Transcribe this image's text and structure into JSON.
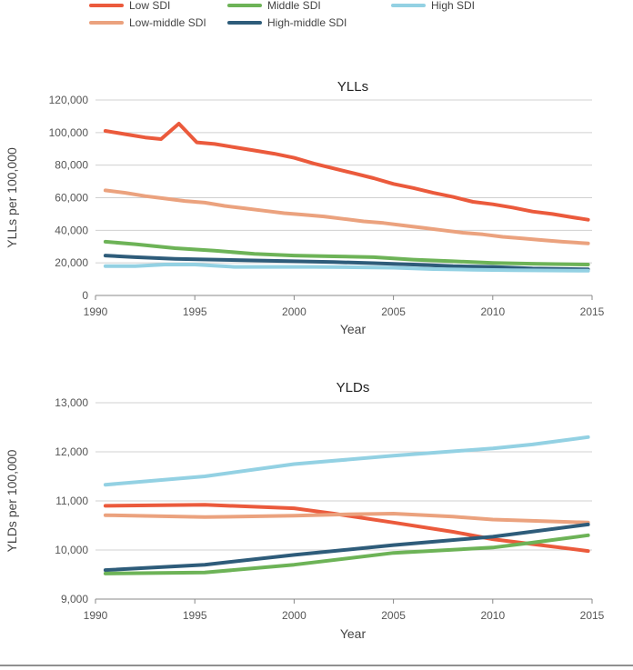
{
  "colors": {
    "low": "#eb5a3c",
    "low_middle": "#eba27e",
    "middle": "#6db357",
    "high_middle": "#2e5c7a",
    "high": "#93d1e3"
  },
  "legend": [
    {
      "key": "low",
      "label": "Low SDI"
    },
    {
      "key": "low_middle",
      "label": "Low-middle SDI"
    },
    {
      "key": "middle",
      "label": "Middle SDI"
    },
    {
      "key": "high_middle",
      "label": "High-middle SDI"
    },
    {
      "key": "high",
      "label": "High SDI"
    }
  ],
  "chart_data": [
    {
      "type": "line",
      "title": "YLLs",
      "xlabel": "Year",
      "ylabel": "YLLs per 100,000",
      "xlim": [
        1990,
        2015
      ],
      "ylim": [
        0,
        120000
      ],
      "x_ticks": [
        "1990",
        "1995",
        "2000",
        "2005",
        "2010",
        "2015"
      ],
      "y_ticks": [
        "0",
        "20,000",
        "40,000",
        "60,000",
        "80,000",
        "100,000",
        "120,000"
      ],
      "grid": true,
      "series": [
        {
          "key": "low",
          "name": "Low SDI",
          "points": [
            [
              1990.5,
              101000
            ],
            [
              1991.5,
              99000
            ],
            [
              1992.5,
              97000
            ],
            [
              1993.3,
              96000
            ],
            [
              1994.2,
              105500
            ],
            [
              1995.1,
              94000
            ],
            [
              1996,
              93000
            ],
            [
              1997,
              91000
            ],
            [
              1998,
              89000
            ],
            [
              1999,
              87000
            ],
            [
              2000,
              84500
            ],
            [
              2001,
              81000
            ],
            [
              2002,
              78000
            ],
            [
              2003,
              75000
            ],
            [
              2004,
              72000
            ],
            [
              2005,
              68500
            ],
            [
              2006,
              66000
            ],
            [
              2007,
              63000
            ],
            [
              2008,
              60500
            ],
            [
              2009,
              57500
            ],
            [
              2010,
              56000
            ],
            [
              2011,
              54000
            ],
            [
              2012,
              51500
            ],
            [
              2013,
              50000
            ],
            [
              2014,
              48000
            ],
            [
              2014.8,
              46500
            ]
          ]
        },
        {
          "key": "low_middle",
          "name": "Low-middle SDI",
          "points": [
            [
              1990.5,
              64500
            ],
            [
              1991.5,
              63000
            ],
            [
              1992.5,
              61000
            ],
            [
              1993.5,
              59500
            ],
            [
              1994.5,
              58000
            ],
            [
              1995.5,
              57000
            ],
            [
              1996.5,
              55000
            ],
            [
              1997.5,
              53500
            ],
            [
              1998.5,
              52000
            ],
            [
              1999.5,
              50500
            ],
            [
              2000.5,
              49500
            ],
            [
              2001.5,
              48500
            ],
            [
              2002.5,
              47000
            ],
            [
              2003.5,
              45500
            ],
            [
              2004.5,
              44500
            ],
            [
              2005.5,
              43000
            ],
            [
              2006.5,
              41500
            ],
            [
              2007.5,
              40000
            ],
            [
              2008.5,
              38500
            ],
            [
              2009.5,
              37500
            ],
            [
              2010.5,
              36000
            ],
            [
              2011.5,
              35000
            ],
            [
              2012.5,
              34000
            ],
            [
              2013.5,
              33000
            ],
            [
              2014.8,
              32000
            ]
          ]
        },
        {
          "key": "middle",
          "name": "Middle SDI",
          "points": [
            [
              1990.5,
              33000
            ],
            [
              1992,
              31500
            ],
            [
              1994,
              29000
            ],
            [
              1996,
              27500
            ],
            [
              1998,
              25500
            ],
            [
              2000,
              24500
            ],
            [
              2002,
              24000
            ],
            [
              2004,
              23500
            ],
            [
              2006,
              22000
            ],
            [
              2008,
              21000
            ],
            [
              2010,
              20000
            ],
            [
              2012,
              19500
            ],
            [
              2014.8,
              19000
            ]
          ]
        },
        {
          "key": "high_middle",
          "name": "High-middle SDI",
          "points": [
            [
              1990.5,
              24500
            ],
            [
              1992,
              23500
            ],
            [
              1994,
              22500
            ],
            [
              1996,
              22000
            ],
            [
              1998,
              21500
            ],
            [
              2000,
              21000
            ],
            [
              2002,
              20500
            ],
            [
              2004,
              19800
            ],
            [
              2006,
              19000
            ],
            [
              2008,
              18000
            ],
            [
              2010,
              17500
            ],
            [
              2012,
              16500
            ],
            [
              2014.8,
              16000
            ]
          ]
        },
        {
          "key": "high",
          "name": "High SDI",
          "points": [
            [
              1990.5,
              18000
            ],
            [
              1992,
              18000
            ],
            [
              1993.5,
              19000
            ],
            [
              1995,
              19000
            ],
            [
              1997,
              17500
            ],
            [
              1999,
              17500
            ],
            [
              2001,
              17500
            ],
            [
              2003,
              17300
            ],
            [
              2005,
              17000
            ],
            [
              2007,
              16200
            ],
            [
              2009,
              15800
            ],
            [
              2011,
              15500
            ],
            [
              2014.8,
              15200
            ]
          ]
        }
      ]
    },
    {
      "type": "line",
      "title": "YLDs",
      "xlabel": "Year",
      "ylabel": "YLDs per 100,000",
      "xlim": [
        1990,
        2015
      ],
      "ylim": [
        9000,
        13000
      ],
      "x_ticks": [
        "1990",
        "1995",
        "2000",
        "2005",
        "2010",
        "2015"
      ],
      "y_ticks": [
        "9,000",
        "10,000",
        "11,000",
        "12,000",
        "13,000"
      ],
      "grid": true,
      "series": [
        {
          "key": "high",
          "name": "High SDI",
          "points": [
            [
              1990.5,
              11330
            ],
            [
              1995.5,
              11500
            ],
            [
              2000,
              11750
            ],
            [
              2005,
              11920
            ],
            [
              2010,
              12070
            ],
            [
              2012,
              12150
            ],
            [
              2014.8,
              12300
            ]
          ]
        },
        {
          "key": "low",
          "name": "Low SDI",
          "points": [
            [
              1990.5,
              10900
            ],
            [
              1995.5,
              10920
            ],
            [
              2000,
              10850
            ],
            [
              2002,
              10740
            ],
            [
              2005,
              10560
            ],
            [
              2008,
              10370
            ],
            [
              2010,
              10220
            ],
            [
              2014.8,
              9980
            ]
          ]
        },
        {
          "key": "low_middle",
          "name": "Low-middle SDI",
          "points": [
            [
              1990.5,
              10710
            ],
            [
              1995.5,
              10670
            ],
            [
              2000,
              10700
            ],
            [
              2003,
              10730
            ],
            [
              2005,
              10740
            ],
            [
              2008,
              10680
            ],
            [
              2010,
              10620
            ],
            [
              2014.8,
              10560
            ]
          ]
        },
        {
          "key": "high_middle",
          "name": "High-middle SDI",
          "points": [
            [
              1990.5,
              9590
            ],
            [
              1995.5,
              9700
            ],
            [
              2000,
              9900
            ],
            [
              2005,
              10100
            ],
            [
              2010,
              10270
            ],
            [
              2014.8,
              10520
            ]
          ]
        },
        {
          "key": "middle",
          "name": "Middle SDI",
          "points": [
            [
              1990.5,
              9520
            ],
            [
              1995.5,
              9540
            ],
            [
              2000,
              9700
            ],
            [
              2005,
              9940
            ],
            [
              2010,
              10050
            ],
            [
              2012,
              10150
            ],
            [
              2014.8,
              10300
            ]
          ]
        }
      ]
    }
  ]
}
